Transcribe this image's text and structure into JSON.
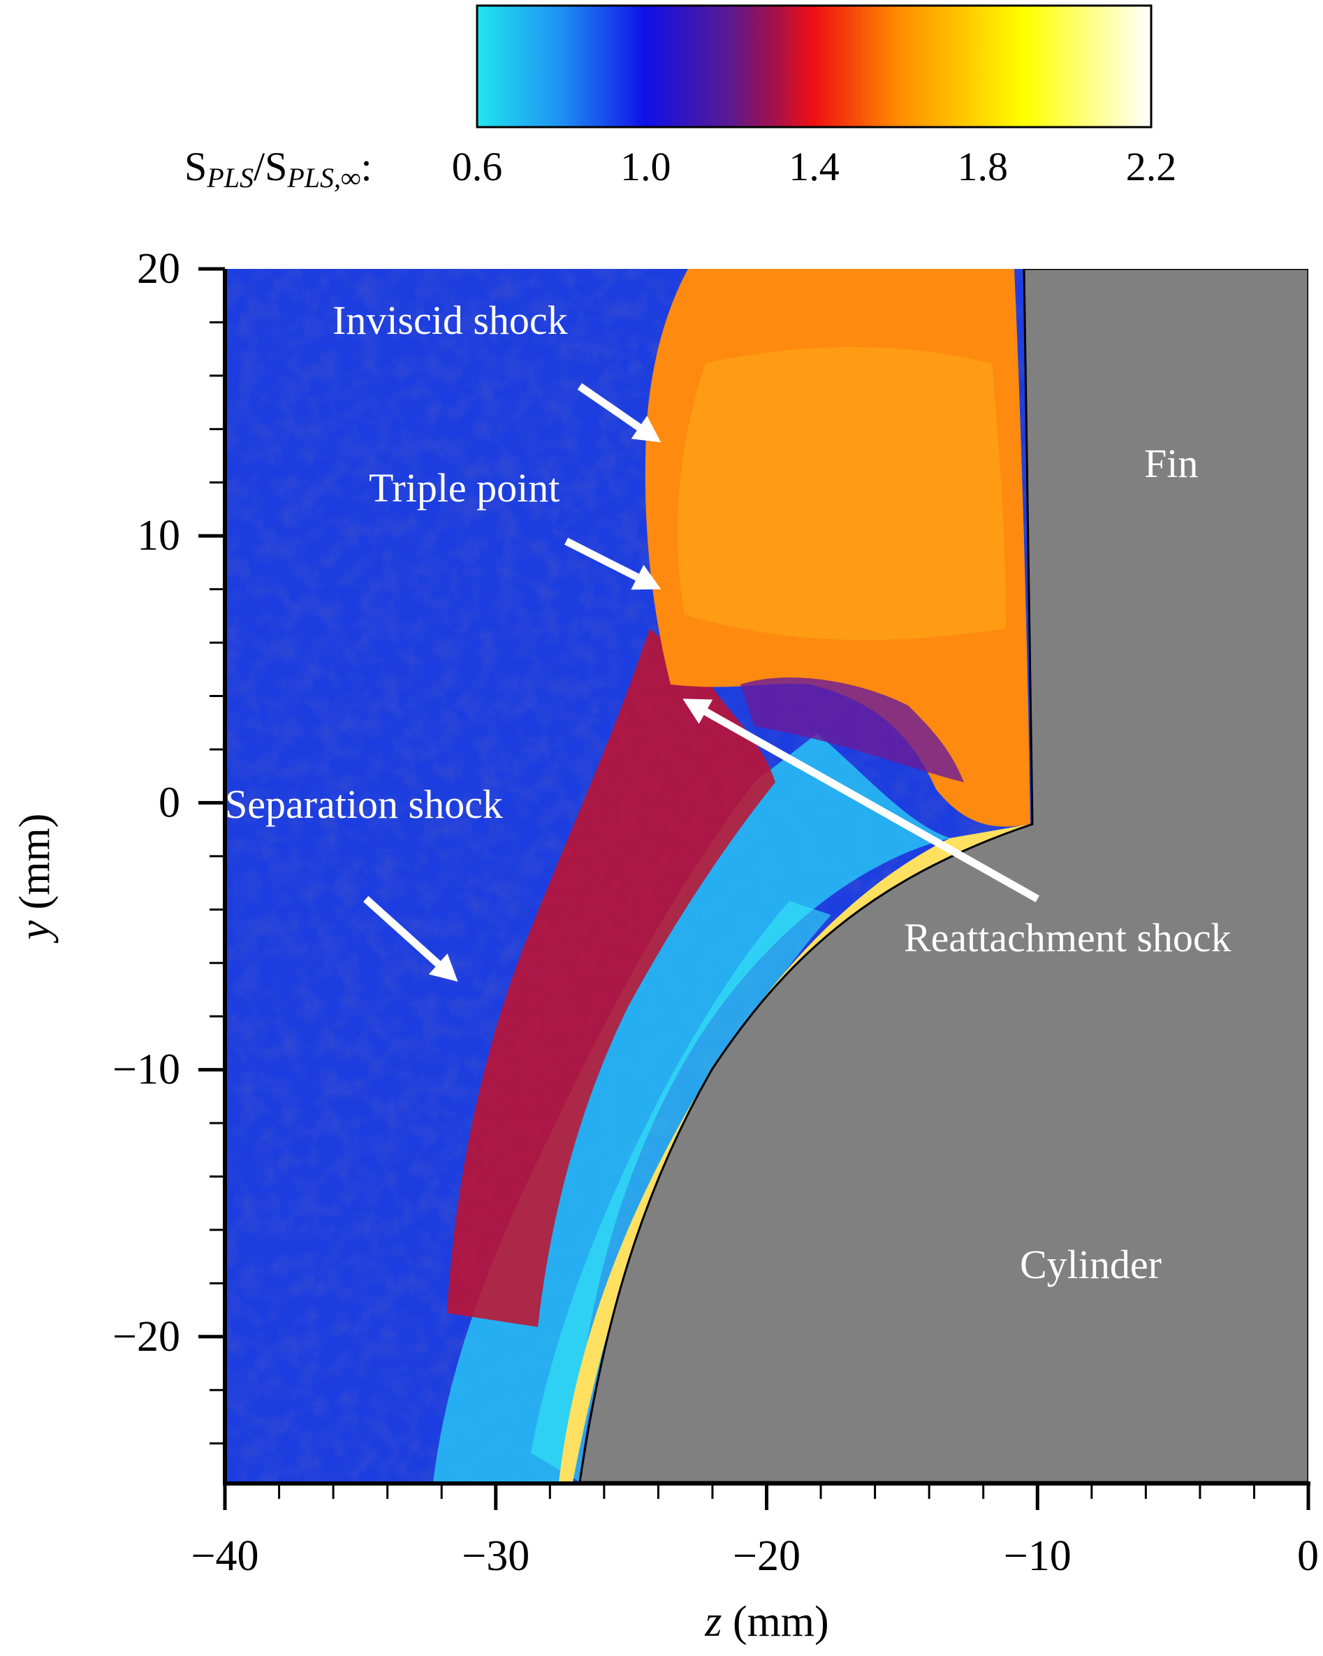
{
  "chart_data": {
    "type": "heatmap",
    "title": "",
    "xlabel": {
      "var": "z",
      "unit": " (mm)"
    },
    "ylabel": {
      "var": "y",
      "unit": " (mm)"
    },
    "xlim": [
      -40,
      0
    ],
    "ylim": [
      -25.5,
      20
    ],
    "x_ticks": [
      -40,
      -30,
      -20,
      -10,
      0
    ],
    "x_tick_labels": [
      "−40",
      "−30",
      "−20",
      "−10",
      "0"
    ],
    "y_ticks": [
      20,
      10,
      0,
      -10,
      -20
    ],
    "y_tick_labels": [
      "20",
      "10",
      "0",
      "−10",
      "−20"
    ],
    "colorbar": {
      "label_main": "S",
      "label_sub1": "PLS",
      "label_mid": "/S",
      "label_sub2": "PLS,∞",
      "label_end": ":",
      "range": [
        0.6,
        2.2
      ],
      "ticks": [
        0.6,
        1.0,
        1.4,
        1.8,
        2.2
      ],
      "tick_labels": [
        "0.6",
        "1.0",
        "1.4",
        "1.8",
        "2.2"
      ],
      "stops": [
        {
          "value": 0.6,
          "color": "#22e5f0"
        },
        {
          "value": 0.8,
          "color": "#1e90f2"
        },
        {
          "value": 1.0,
          "color": "#1010e8"
        },
        {
          "value": 1.2,
          "color": "#5a1a90"
        },
        {
          "value": 1.3,
          "color": "#a0104e"
        },
        {
          "value": 1.4,
          "color": "#f00f12"
        },
        {
          "value": 1.6,
          "color": "#ff8c00"
        },
        {
          "value": 1.9,
          "color": "#ffff00"
        },
        {
          "value": 2.2,
          "color": "#ffffff"
        }
      ]
    },
    "annotations": [
      {
        "text": "Inviscid shock",
        "arrow_from": [
          -26.9,
          15.6
        ],
        "arrow_to": [
          -23.9,
          13.5
        ]
      },
      {
        "text": "Triple point",
        "arrow_from": [
          -27.4,
          9.8
        ],
        "arrow_to": [
          -23.9,
          8.0
        ]
      },
      {
        "text": "Separation shock",
        "arrow_from": [
          -34.8,
          -3.6
        ],
        "arrow_to": [
          -31.4,
          -6.7
        ]
      },
      {
        "text": "Reattachment shock",
        "arrow_from": [
          -10.0,
          -3.6
        ],
        "arrow_to": [
          -23.1,
          3.9
        ]
      },
      {
        "text": "Fin"
      },
      {
        "text": "Cylinder"
      }
    ]
  }
}
